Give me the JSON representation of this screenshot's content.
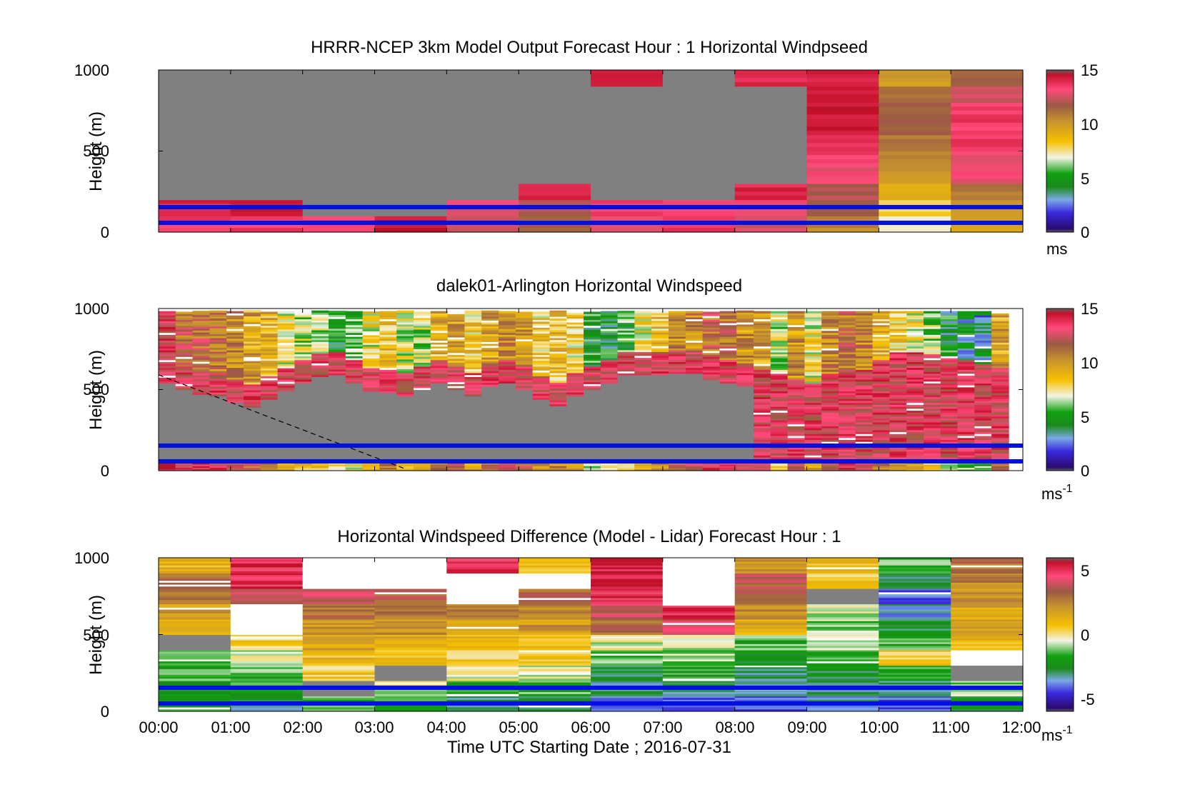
{
  "figure": {
    "xlabel": "Time UTC  Starting Date ; 2016-07-31",
    "xticks": [
      "00:00",
      "01:00",
      "02:00",
      "03:00",
      "04:00",
      "05:00",
      "06:00",
      "07:00",
      "08:00",
      "09:00",
      "10:00",
      "11:00",
      "12:00"
    ]
  },
  "chart_data": [
    {
      "type": "heatmap",
      "title": "HRRR-NCEP 3km Model Output   Forecast Hour : 1 Horizontal Windpseed",
      "ylabel": "Height (m)",
      "xlim_hours": [
        0,
        12
      ],
      "ylim": [
        0,
        1000
      ],
      "yticks": [
        0,
        500,
        1000
      ],
      "colorbar": {
        "range": [
          0,
          15
        ],
        "ticks": [
          0,
          5,
          10,
          15
        ],
        "unit": "ms"
      },
      "reference_lines_m": [
        60,
        160
      ],
      "hourly_columns": [
        [
          13.5,
          14,
          0,
          0,
          0,
          0,
          0,
          0,
          0,
          0
        ],
        [
          13.5,
          14.5,
          0,
          0,
          0,
          0,
          0,
          0,
          0,
          0
        ],
        [
          13.5,
          0,
          0,
          0,
          0,
          0,
          0,
          0,
          0,
          0
        ],
        [
          14.5,
          0,
          0,
          0,
          0,
          0,
          0,
          0,
          0,
          0
        ],
        [
          12.5,
          13,
          0,
          0,
          0,
          0,
          0,
          0,
          0,
          0
        ],
        [
          11.5,
          12,
          14,
          0,
          0,
          0,
          0,
          0,
          0,
          0
        ],
        [
          13,
          13.5,
          0,
          0,
          0,
          0,
          0,
          0,
          0,
          14
        ],
        [
          13.5,
          13.5,
          0,
          0,
          0,
          0,
          0,
          0,
          0,
          0
        ],
        [
          12.5,
          13,
          14,
          0,
          0,
          0,
          0,
          0,
          0,
          14
        ],
        [
          10.5,
          11.5,
          12,
          13,
          13.5,
          14,
          14.5,
          14.5,
          14.5,
          14
        ],
        [
          7,
          8,
          9.5,
          10,
          10.5,
          11,
          11.5,
          11.5,
          11,
          10
        ],
        [
          9.5,
          10,
          11,
          13,
          13,
          13.5,
          13.5,
          13.5,
          12.5,
          11.5
        ]
      ]
    },
    {
      "type": "heatmap",
      "title": "dalek01-Arlington  Horizontal Windspeed",
      "ylabel": "Height (m)",
      "xlim_hours": [
        0,
        12
      ],
      "ylim": [
        0,
        1000
      ],
      "yticks": [
        0,
        500,
        1000
      ],
      "colorbar": {
        "range": [
          0,
          15
        ],
        "ticks": [
          0,
          5,
          10,
          15
        ],
        "unit": "ms",
        "unit_exp": "-1"
      },
      "reference_lines_m": [
        60,
        160
      ],
      "mixing_layer_m": [
        600,
        560,
        530,
        520,
        480,
        450,
        500,
        550,
        600,
        640,
        650,
        600,
        550,
        540,
        520,
        560,
        600,
        560,
        520,
        580,
        600,
        560,
        500,
        460,
        520,
        560,
        600,
        650,
        650,
        650,
        660,
        660,
        620,
        600,
        580,
        540,
        520,
        480,
        460,
        520,
        520,
        540,
        600,
        650,
        650,
        640,
        620,
        600,
        580,
        550
      ],
      "profile_center_ms": [
        13,
        11.5,
        11.5,
        11,
        10.5,
        9.5,
        9,
        7.5,
        6.5,
        6,
        5,
        5.5,
        7.5,
        8.5,
        7,
        6.5,
        9,
        9.5,
        8,
        9.5,
        10.5,
        10,
        8,
        8.5,
        8,
        5,
        4.5,
        5.5,
        7.5,
        8.5,
        10,
        10.5,
        11.5,
        11,
        10,
        9.5,
        6.5,
        10,
        7.5,
        10.5,
        11,
        10.5,
        9,
        8,
        7.5,
        6,
        4.5,
        4,
        3.5,
        9.5
      ]
    },
    {
      "type": "heatmap",
      "title": "Horizontal Windspeed Difference (Model - Lidar) Forecast Hour : 1",
      "ylabel": "Height (m)",
      "xlim_hours": [
        0,
        12
      ],
      "ylim": [
        0,
        1000
      ],
      "yticks": [
        0,
        500,
        1000
      ],
      "colorbar": {
        "range": [
          -6,
          6
        ],
        "ticks": [
          -5,
          0,
          5
        ],
        "unit": "ms",
        "unit_exp": "-1"
      },
      "reference_lines_m": [
        60,
        160
      ],
      "hourly_columns": [
        [
          -2,
          -2,
          -1.5,
          -1,
          0,
          1,
          2,
          2.5,
          3,
          1
        ],
        [
          -3,
          -2,
          -1.5,
          -0.5,
          0.5,
          99,
          99,
          4,
          5,
          5
        ],
        [
          -1,
          0,
          0.5,
          1,
          1.5,
          2,
          3,
          4,
          99,
          99
        ],
        [
          -1.5,
          -0.5,
          0,
          1,
          1.5,
          2,
          3,
          3.5,
          99,
          99
        ],
        [
          -3,
          -2,
          -0.5,
          0.5,
          1,
          1.5,
          2.5,
          99,
          99,
          5
        ],
        [
          -3,
          -1.5,
          -0.5,
          0.5,
          1,
          2,
          2.5,
          3,
          99,
          1
        ],
        [
          -4,
          -3,
          -2.5,
          -1.5,
          -0.5,
          3,
          4,
          5,
          5.5,
          5.5
        ],
        [
          -4.5,
          -3,
          -2,
          -1,
          -0.5,
          4,
          5,
          99,
          99,
          99
        ],
        [
          -4,
          -3.5,
          -3,
          -2.5,
          -1.5,
          1.5,
          2.5,
          3,
          3.5,
          2
        ],
        [
          -3.5,
          -3,
          -2.5,
          -1.5,
          -0.5,
          -1,
          -0.5,
          0,
          0.5,
          1
        ],
        [
          -4,
          -3,
          -1.5,
          0.5,
          -1.5,
          -2.5,
          -3.5,
          -4,
          -2.5,
          -1.5
        ],
        [
          -2.5,
          -1,
          0,
          99,
          1,
          1.5,
          1.5,
          2,
          2.5,
          3
        ]
      ]
    }
  ]
}
